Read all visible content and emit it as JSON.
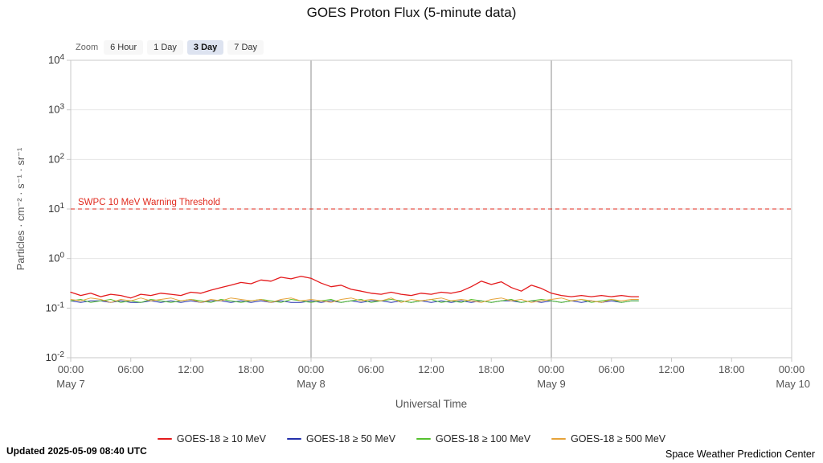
{
  "title": "GOES Proton Flux (5-minute data)",
  "toolbar": {
    "zoom_label": "Zoom",
    "buttons": [
      {
        "label": "6 Hour",
        "selected": false
      },
      {
        "label": "1 Day",
        "selected": false
      },
      {
        "label": "3 Day",
        "selected": true
      },
      {
        "label": "7 Day",
        "selected": false
      }
    ]
  },
  "chart_data": {
    "type": "line",
    "title": "GOES Proton Flux (5-minute data)",
    "xlabel": "Universal Time",
    "ylabel": "Particles · cm⁻² · s⁻¹ · sr⁻¹",
    "y_scale": "log",
    "ylim_exponents": [
      -2,
      4
    ],
    "y_tick_exponents": [
      4,
      3,
      2,
      1,
      0,
      -1,
      -2
    ],
    "x_range_hours": [
      0,
      72
    ],
    "x_ticks": [
      {
        "hour": 0,
        "label": "00:00",
        "day": "May 7"
      },
      {
        "hour": 6,
        "label": "06:00"
      },
      {
        "hour": 12,
        "label": "12:00"
      },
      {
        "hour": 18,
        "label": "18:00"
      },
      {
        "hour": 24,
        "label": "00:00",
        "day": "May 8"
      },
      {
        "hour": 30,
        "label": "06:00"
      },
      {
        "hour": 36,
        "label": "12:00"
      },
      {
        "hour": 42,
        "label": "18:00"
      },
      {
        "hour": 48,
        "label": "00:00",
        "day": "May 9"
      },
      {
        "hour": 54,
        "label": "06:00"
      },
      {
        "hour": 60,
        "label": "12:00"
      },
      {
        "hour": 66,
        "label": "18:00"
      },
      {
        "hour": 72,
        "label": "00:00",
        "day": "May 10"
      }
    ],
    "day_boundaries_hours": [
      24,
      48
    ],
    "grid": {
      "horizontal": true,
      "vertical_day_lines": true
    },
    "legend_position": "bottom",
    "threshold": {
      "value": 10,
      "label": "SWPC 10 MeV Warning Threshold",
      "color": "#e02a1e"
    },
    "x_hours": [
      0,
      1,
      2,
      3,
      4,
      5,
      6,
      7,
      8,
      9,
      10,
      11,
      12,
      13,
      14,
      15,
      16,
      17,
      18,
      19,
      20,
      21,
      22,
      23,
      24,
      25,
      26,
      27,
      28,
      29,
      30,
      31,
      32,
      33,
      34,
      35,
      36,
      37,
      38,
      39,
      40,
      41,
      42,
      43,
      44,
      45,
      46,
      47,
      48,
      49,
      50,
      51,
      52,
      53,
      54,
      55,
      56,
      56.7
    ],
    "series": [
      {
        "name": "GOES-18 ≥ 10 MeV",
        "color": "#e41a1c",
        "width": 1.3,
        "values": [
          0.21,
          0.18,
          0.2,
          0.17,
          0.19,
          0.18,
          0.16,
          0.19,
          0.18,
          0.2,
          0.19,
          0.18,
          0.21,
          0.2,
          0.23,
          0.26,
          0.29,
          0.33,
          0.31,
          0.37,
          0.35,
          0.42,
          0.39,
          0.44,
          0.4,
          0.32,
          0.27,
          0.29,
          0.24,
          0.22,
          0.2,
          0.19,
          0.21,
          0.19,
          0.18,
          0.2,
          0.19,
          0.21,
          0.2,
          0.22,
          0.27,
          0.35,
          0.3,
          0.34,
          0.26,
          0.22,
          0.29,
          0.25,
          0.2,
          0.18,
          0.17,
          0.18,
          0.17,
          0.18,
          0.17,
          0.18,
          0.17,
          0.17
        ]
      },
      {
        "name": "GOES-18 ≥ 50 MeV",
        "color": "#2330ab",
        "width": 1,
        "values": [
          0.14,
          0.13,
          0.14,
          0.14,
          0.13,
          0.14,
          0.13,
          0.13,
          0.14,
          0.13,
          0.14,
          0.13,
          0.14,
          0.13,
          0.14,
          0.14,
          0.13,
          0.14,
          0.13,
          0.14,
          0.13,
          0.14,
          0.13,
          0.13,
          0.14,
          0.13,
          0.14,
          0.13,
          0.14,
          0.13,
          0.14,
          0.14,
          0.13,
          0.14,
          0.13,
          0.14,
          0.13,
          0.14,
          0.13,
          0.14,
          0.13,
          0.14,
          0.13,
          0.14,
          0.14,
          0.13,
          0.14,
          0.13,
          0.14,
          0.13,
          0.14,
          0.13,
          0.14,
          0.13,
          0.14,
          0.13,
          0.14,
          0.14
        ]
      },
      {
        "name": "GOES-18 ≥ 100 MeV",
        "color": "#55c12e",
        "width": 1,
        "values": [
          0.14,
          0.15,
          0.13,
          0.14,
          0.15,
          0.13,
          0.14,
          0.13,
          0.15,
          0.14,
          0.13,
          0.14,
          0.15,
          0.14,
          0.13,
          0.15,
          0.14,
          0.13,
          0.14,
          0.15,
          0.14,
          0.13,
          0.15,
          0.14,
          0.13,
          0.14,
          0.15,
          0.13,
          0.14,
          0.15,
          0.13,
          0.14,
          0.15,
          0.14,
          0.13,
          0.14,
          0.15,
          0.13,
          0.14,
          0.13,
          0.15,
          0.14,
          0.13,
          0.14,
          0.15,
          0.13,
          0.14,
          0.15,
          0.14,
          0.13,
          0.14,
          0.15,
          0.13,
          0.14,
          0.15,
          0.13,
          0.14,
          0.14
        ]
      },
      {
        "name": "GOES-18 ≥ 500 MeV",
        "color": "#e6a33a",
        "width": 1,
        "values": [
          0.15,
          0.14,
          0.16,
          0.15,
          0.13,
          0.15,
          0.14,
          0.16,
          0.14,
          0.15,
          0.16,
          0.14,
          0.15,
          0.13,
          0.15,
          0.14,
          0.16,
          0.15,
          0.14,
          0.15,
          0.13,
          0.15,
          0.16,
          0.14,
          0.15,
          0.14,
          0.13,
          0.15,
          0.16,
          0.14,
          0.15,
          0.14,
          0.16,
          0.13,
          0.15,
          0.14,
          0.15,
          0.16,
          0.14,
          0.15,
          0.14,
          0.13,
          0.15,
          0.16,
          0.14,
          0.15,
          0.13,
          0.14,
          0.15,
          0.16,
          0.14,
          0.15,
          0.14,
          0.13,
          0.15,
          0.14,
          0.15,
          0.15
        ]
      }
    ]
  },
  "footer": {
    "updated": "Updated 2025-05-09 08:40 UTC",
    "source": "Space Weather Prediction Center"
  }
}
